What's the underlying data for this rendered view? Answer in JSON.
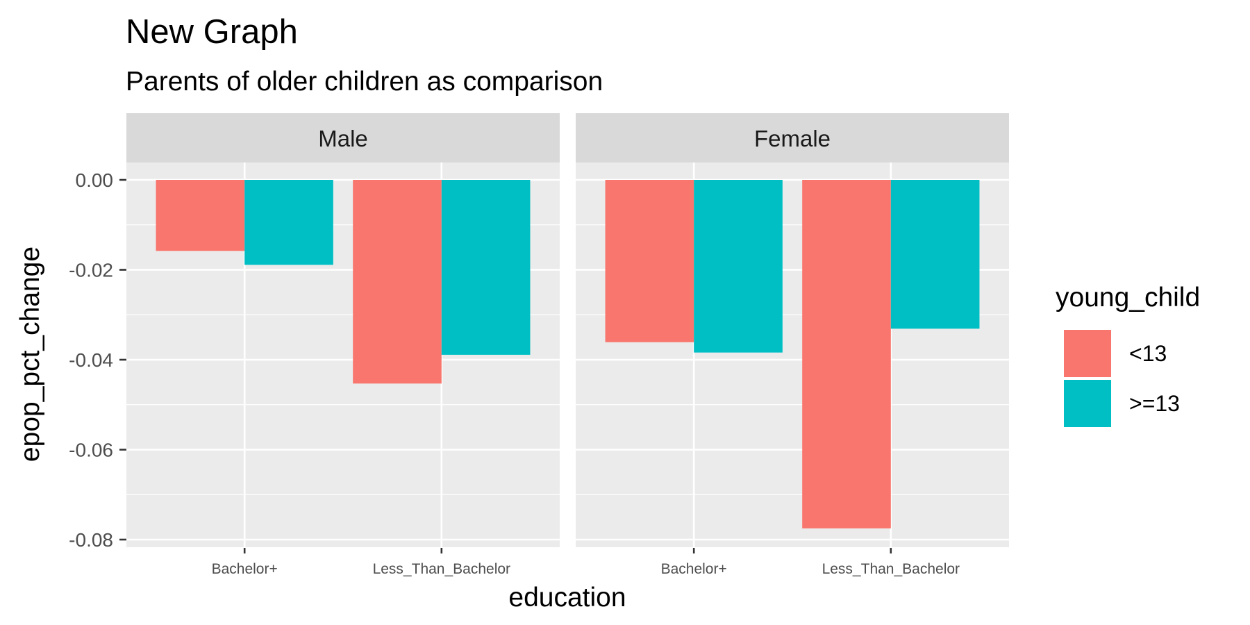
{
  "chart_data": {
    "type": "bar",
    "title": "New Graph",
    "subtitle": "Parents of older children as comparison",
    "xlabel": "education",
    "ylabel": "epop_pct_change",
    "categories": [
      "Bachelor+",
      "Less_Than_Bachelor"
    ],
    "ylim": [
      -0.08,
      0.0
    ],
    "yticks": [
      0.0,
      -0.02,
      -0.04,
      -0.06,
      -0.08
    ],
    "ytick_labels": [
      "0.00",
      "-0.02",
      "-0.04",
      "-0.06",
      "-0.08"
    ],
    "facets": [
      {
        "label": "Male",
        "series": [
          {
            "name": "<13",
            "values": [
              -0.0158,
              -0.0453
            ]
          },
          {
            "name": ">=13",
            "values": [
              -0.0189,
              -0.0389
            ]
          }
        ]
      },
      {
        "label": "Female",
        "series": [
          {
            "name": "<13",
            "values": [
              -0.0361,
              -0.0775
            ]
          },
          {
            "name": ">=13",
            "values": [
              -0.0384,
              -0.0331
            ]
          }
        ]
      }
    ],
    "legend": {
      "title": "young_child",
      "position": "right",
      "entries": [
        {
          "label": "<13",
          "color": "#F8766D"
        },
        {
          "label": ">=13",
          "color": "#00BFC4"
        }
      ]
    },
    "grid": true,
    "colors": {
      "panel_background": "#EBEBEB",
      "strip_background": "#D9D9D9",
      "grid_line": "#FFFFFF"
    }
  }
}
